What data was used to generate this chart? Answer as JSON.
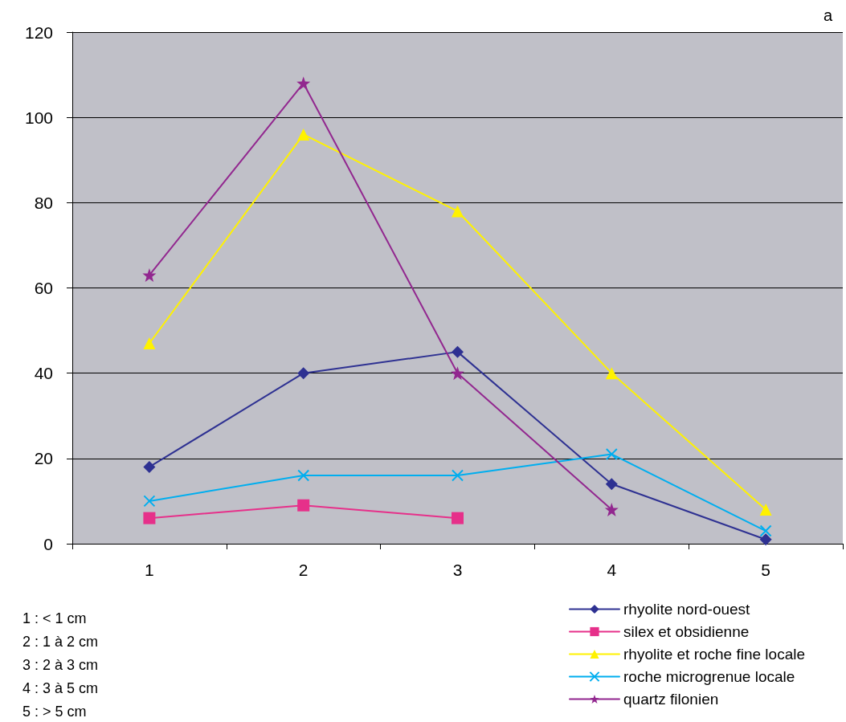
{
  "chart_data": {
    "type": "line",
    "title": "a",
    "categories": [
      "1",
      "2",
      "3",
      "4",
      "5"
    ],
    "series": [
      {
        "name": "rhyolite nord-ouest",
        "color": "#2e3192",
        "marker": "diamond",
        "values": [
          18,
          40,
          45,
          14,
          1
        ]
      },
      {
        "name": "silex et obsidienne",
        "color": "#e6308a",
        "marker": "square",
        "values": [
          6,
          9,
          6,
          null,
          null
        ]
      },
      {
        "name": "rhyolite et roche fine locale",
        "color": "#fff200",
        "marker": "triangle",
        "values": [
          47,
          96,
          78,
          40,
          8
        ]
      },
      {
        "name": "roche microgrenue locale",
        "color": "#00aeef",
        "marker": "cross",
        "values": [
          10,
          16,
          16,
          21,
          3
        ]
      },
      {
        "name": "quartz filonien",
        "color": "#92278f",
        "marker": "star",
        "values": [
          63,
          108,
          40,
          8,
          null
        ]
      }
    ],
    "ylim": [
      0,
      120
    ],
    "yticks": [
      0,
      20,
      40,
      60,
      80,
      100,
      120
    ],
    "grid": "y",
    "legend": "bottom right",
    "line_style": "solid",
    "annotations": [
      "1 : < 1 cm",
      "2 : 1 à 2 cm",
      "3 : 2 à 3 cm",
      "4 : 3 à 5 cm",
      "5 : > 5 cm"
    ]
  }
}
